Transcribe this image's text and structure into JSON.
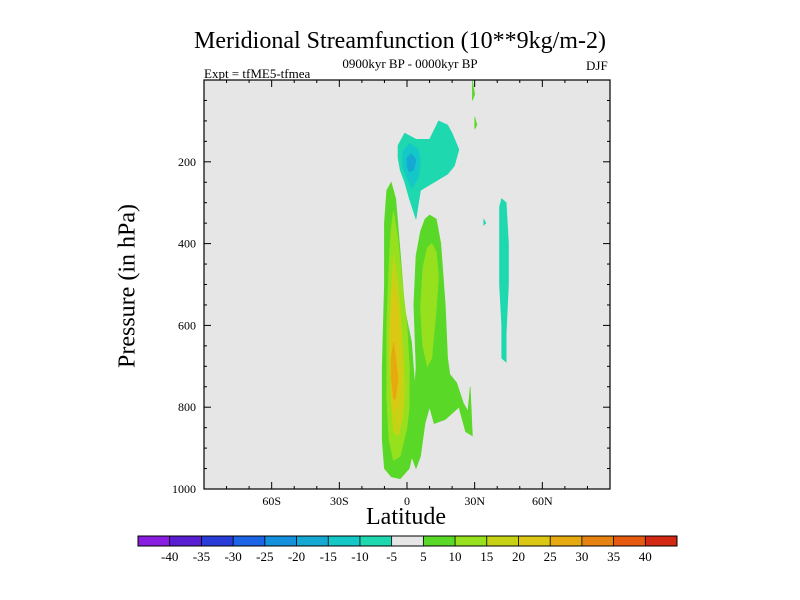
{
  "figure": {
    "title": "Meridional Streamfunction (10**9kg/m-2)",
    "experiment_label": "Expt = tfME5-tfmea",
    "period_label": "0900kyr BP - 0000kyr BP",
    "season_label": "DJF"
  },
  "chart_data": {
    "type": "heatmap",
    "title": "Meridional Streamfunction (10**9kg/m-2)",
    "xlabel": "Latitude",
    "ylabel": "Pressure (in hPa)",
    "xlim": [
      -90,
      90
    ],
    "ylim": [
      0,
      1000
    ],
    "y_inverted": true,
    "x_ticks": [
      -60,
      -30,
      0,
      30,
      60
    ],
    "x_tick_labels": [
      "60S",
      "30S",
      "0",
      "30N",
      "60N"
    ],
    "y_ticks": [
      200,
      400,
      600,
      800,
      1000
    ],
    "y_tick_labels": [
      "200",
      "400",
      "600",
      "800",
      "1000"
    ],
    "background_color": "#e6e6e6",
    "colorbar": {
      "levels": [
        -40,
        -35,
        -30,
        -25,
        -20,
        -15,
        -10,
        -5,
        5,
        10,
        15,
        20,
        25,
        30,
        35,
        40
      ],
      "level_labels": [
        "-40",
        "-35",
        "-30",
        "-25",
        "-20",
        "-15",
        "-10",
        "-5",
        "5",
        "10",
        "15",
        "20",
        "25",
        "30",
        "35",
        "40"
      ],
      "colors": [
        "#8a1ee0",
        "#5a1ed2",
        "#2a3cd8",
        "#1e64e6",
        "#1490dc",
        "#14a8d2",
        "#14c8c8",
        "#1ed8b0",
        "#e6e6e6",
        "#5ad828",
        "#96e01e",
        "#c8d214",
        "#dcc814",
        "#e6aa10",
        "#e68210",
        "#e65a10",
        "#d22814"
      ]
    },
    "contours": [
      {
        "min": 5,
        "points": [
          [
            -7,
            250
          ],
          [
            -5,
            290
          ],
          [
            -3,
            420
          ],
          [
            -1,
            560
          ],
          [
            2,
            640
          ],
          [
            4,
            780
          ],
          [
            3,
            900
          ],
          [
            1,
            950
          ],
          [
            -3,
            975
          ],
          [
            -7,
            970
          ],
          [
            -10,
            950
          ],
          [
            -11,
            880
          ],
          [
            -11,
            700
          ],
          [
            -10,
            500
          ],
          [
            -10,
            350
          ],
          [
            -9,
            270
          ]
        ]
      },
      {
        "min": 10,
        "points": [
          [
            -6,
            320
          ],
          [
            -4,
            390
          ],
          [
            -2,
            500
          ],
          [
            0,
            600
          ],
          [
            1,
            700
          ],
          [
            1,
            800
          ],
          [
            0,
            850
          ],
          [
            -3,
            920
          ],
          [
            -6,
            930
          ],
          [
            -8,
            880
          ],
          [
            -9,
            780
          ],
          [
            -9,
            600
          ],
          [
            -8,
            450
          ],
          [
            -7,
            360
          ]
        ]
      },
      {
        "min": 15,
        "points": [
          [
            -6,
            430
          ],
          [
            -4,
            500
          ],
          [
            -3,
            560
          ],
          [
            -2,
            650
          ],
          [
            -1,
            760
          ],
          [
            -2,
            830
          ],
          [
            -4,
            870
          ],
          [
            -6,
            860
          ],
          [
            -7,
            780
          ],
          [
            -8,
            640
          ],
          [
            -7,
            520
          ]
        ]
      },
      {
        "min": 20,
        "points": [
          [
            -6,
            500
          ],
          [
            -4,
            580
          ],
          [
            -3,
            660
          ],
          [
            -3,
            740
          ],
          [
            -4,
            800
          ],
          [
            -6,
            810
          ],
          [
            -7,
            760
          ],
          [
            -7,
            640
          ],
          [
            -7,
            560
          ]
        ]
      },
      {
        "min": 25,
        "points": [
          [
            -6,
            640
          ],
          [
            -5,
            680
          ],
          [
            -4,
            730
          ],
          [
            -5,
            780
          ],
          [
            -6,
            780
          ],
          [
            -7,
            730
          ],
          [
            -7,
            680
          ]
        ]
      },
      {
        "min": 5,
        "points": [
          [
            10,
            330
          ],
          [
            13,
            340
          ],
          [
            15,
            400
          ],
          [
            17,
            550
          ],
          [
            18,
            680
          ],
          [
            19,
            720
          ],
          [
            22,
            740
          ],
          [
            25,
            790
          ],
          [
            27,
            810
          ],
          [
            28,
            750
          ],
          [
            29,
            870
          ],
          [
            26,
            860
          ],
          [
            23,
            800
          ],
          [
            17,
            830
          ],
          [
            12,
            840
          ],
          [
            10,
            800
          ],
          [
            8,
            840
          ],
          [
            6,
            920
          ],
          [
            4,
            950
          ],
          [
            2,
            920
          ],
          [
            3,
            800
          ],
          [
            4,
            700
          ],
          [
            3,
            550
          ],
          [
            4,
            430
          ],
          [
            6,
            370
          ],
          [
            8,
            340
          ]
        ]
      },
      {
        "min": 10,
        "points": [
          [
            11,
            400
          ],
          [
            13,
            420
          ],
          [
            14,
            480
          ],
          [
            13,
            560
          ],
          [
            11,
            680
          ],
          [
            9,
            700
          ],
          [
            7,
            650
          ],
          [
            6,
            560
          ],
          [
            7,
            460
          ],
          [
            9,
            410
          ]
        ]
      },
      {
        "min": 5,
        "points": [
          [
            29,
            0
          ],
          [
            30,
            35
          ],
          [
            29,
            50
          ]
        ]
      },
      {
        "min": 5,
        "points": [
          [
            30,
            90
          ],
          [
            31,
            110
          ],
          [
            30,
            120
          ]
        ]
      },
      {
        "min": -5,
        "points": [
          [
            -4,
            160
          ],
          [
            -1,
            130
          ],
          [
            4,
            145
          ],
          [
            10,
            145
          ],
          [
            14,
            100
          ],
          [
            18,
            110
          ],
          [
            20,
            130
          ],
          [
            23,
            170
          ],
          [
            21,
            210
          ],
          [
            18,
            230
          ],
          [
            12,
            250
          ],
          [
            6,
            270
          ],
          [
            4,
            340
          ],
          [
            1,
            290
          ],
          [
            -1,
            250
          ],
          [
            -3,
            220
          ],
          [
            -4,
            190
          ]
        ]
      },
      {
        "min": -10,
        "points": [
          [
            -2,
            175
          ],
          [
            1,
            155
          ],
          [
            5,
            170
          ],
          [
            6,
            200
          ],
          [
            5,
            240
          ],
          [
            2,
            265
          ],
          [
            0,
            240
          ],
          [
            -2,
            210
          ]
        ]
      },
      {
        "min": -15,
        "points": [
          [
            0,
            190
          ],
          [
            2,
            180
          ],
          [
            4,
            195
          ],
          [
            3,
            220
          ],
          [
            1,
            225
          ],
          [
            0,
            210
          ]
        ]
      },
      {
        "min": -5,
        "points": [
          [
            42,
            290
          ],
          [
            44,
            300
          ],
          [
            45,
            400
          ],
          [
            45,
            500
          ],
          [
            44,
            620
          ],
          [
            44,
            690
          ],
          [
            42,
            680
          ],
          [
            42,
            600
          ],
          [
            41,
            500
          ],
          [
            41,
            400
          ],
          [
            41,
            310
          ]
        ]
      },
      {
        "min": -5,
        "points": [
          [
            34,
            340
          ],
          [
            35,
            350
          ],
          [
            34,
            355
          ]
        ]
      }
    ]
  }
}
